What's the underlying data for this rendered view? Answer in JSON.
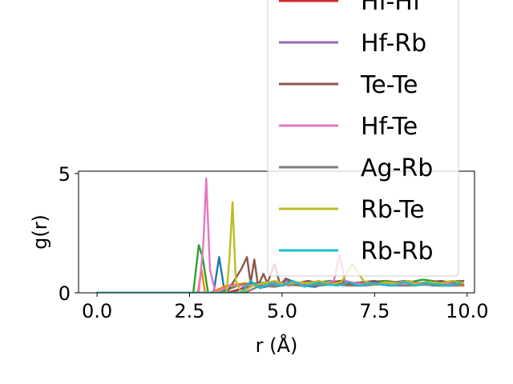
{
  "chart_data": {
    "type": "line",
    "title": "",
    "xlabel": "r (Å)",
    "ylabel": "g(r)",
    "xlim": [
      -0.5,
      10.2
    ],
    "ylim": [
      0,
      5.1
    ],
    "xticks": [
      {
        "value": 0.0,
        "label": "0.0"
      },
      {
        "value": 2.5,
        "label": "2.5"
      },
      {
        "value": 5.0,
        "label": "5.0"
      },
      {
        "value": 7.5,
        "label": "7.5"
      },
      {
        "value": 10.0,
        "label": "10.0"
      }
    ],
    "yticks": [
      {
        "value": 0,
        "label": "0"
      },
      {
        "value": 5,
        "label": "5"
      }
    ],
    "grid": false,
    "legend_position": "upper-right",
    "series": [
      {
        "name": "",
        "color": "#1f77b4",
        "x": [
          0,
          2.6,
          2.95,
          3.15,
          3.3,
          3.45,
          3.8,
          4.2,
          4.4,
          4.7,
          5.1,
          5.5,
          5.9,
          6.3,
          6.7,
          7.1,
          7.5,
          7.9,
          8.3,
          8.7,
          9.1,
          9.5,
          9.9
        ],
        "y": [
          0,
          0,
          0,
          0,
          1.5,
          0,
          0.1,
          0.4,
          0.2,
          0.3,
          0.35,
          0.3,
          0.25,
          0.45,
          0.35,
          0.3,
          0.4,
          0.3,
          0.35,
          0.4,
          0.3,
          0.35,
          0.3
        ]
      },
      {
        "name": "",
        "color": "#ff7f0e",
        "x": [
          0,
          2.6,
          2.72,
          2.82,
          2.92,
          3.05,
          3.5,
          4.0,
          4.5,
          5.0,
          5.5,
          6.0,
          6.5,
          7.0,
          7.5,
          8.0,
          8.5,
          9.0,
          9.5,
          9.9
        ],
        "y": [
          0,
          0,
          0,
          1.0,
          0,
          0,
          0.3,
          0.4,
          0.3,
          0.35,
          0.3,
          0.4,
          0.35,
          0.3,
          0.4,
          0.35,
          0.3,
          0.35,
          0.3,
          0.3
        ]
      },
      {
        "name": "",
        "color": "#2ca02c",
        "x": [
          0,
          2.6,
          2.75,
          2.85,
          3.0,
          3.3,
          3.8,
          4.3,
          4.8,
          5.3,
          5.8,
          6.3,
          6.8,
          7.3,
          7.8,
          8.3,
          8.8,
          9.3,
          9.8
        ],
        "y": [
          0,
          0,
          2.0,
          1.5,
          0,
          0,
          0.3,
          0.4,
          0.45,
          0.35,
          0.4,
          0.5,
          0.4,
          0.45,
          0.5,
          0.4,
          0.55,
          0.45,
          0.5
        ]
      },
      {
        "name": "Hf-Hf",
        "color": "#d62728",
        "x": [
          0,
          3.5,
          4.2,
          4.8,
          5.4,
          6.0,
          6.6,
          7.2,
          7.8,
          8.4,
          9.0,
          9.6,
          9.9
        ],
        "y": [
          0,
          0,
          0.3,
          0.4,
          0.35,
          0.45,
          0.4,
          0.35,
          0.45,
          0.4,
          0.35,
          0.4,
          0.35
        ]
      },
      {
        "name": "Hf-Rb",
        "color": "#9467bd",
        "x": [
          0,
          3.9,
          4.3,
          4.7,
          5.1,
          5.5,
          5.9,
          6.3,
          6.7,
          7.1,
          7.5,
          7.9,
          8.3,
          8.7,
          9.1,
          9.5,
          9.9
        ],
        "y": [
          0,
          0,
          0.4,
          0.3,
          0.5,
          0.35,
          0.45,
          0.4,
          0.5,
          0.35,
          0.45,
          0.4,
          0.5,
          0.35,
          0.45,
          0.4,
          0.5
        ]
      },
      {
        "name": "Te-Te",
        "color": "#8c564b",
        "x": [
          0,
          3.5,
          3.7,
          3.9,
          4.05,
          4.15,
          4.25,
          4.35,
          4.5,
          4.6,
          4.8,
          4.95,
          5.1,
          5.4,
          5.7,
          6.0,
          6.3,
          6.6,
          6.9,
          7.2,
          7.5,
          7.8,
          8.1,
          8.4,
          8.7,
          9.0,
          9.3,
          9.6,
          9.9
        ],
        "y": [
          0,
          0,
          0.5,
          1.0,
          1.5,
          0.4,
          1.4,
          0.3,
          0.8,
          0.4,
          1.2,
          0.3,
          0.6,
          0.4,
          0.5,
          0.4,
          0.45,
          0.5,
          0.4,
          0.45,
          0.5,
          0.4,
          0.45,
          0.5,
          0.4,
          0.45,
          0.5,
          0.4,
          0.5
        ]
      },
      {
        "name": "Hf-Te",
        "color": "#e377c2",
        "x": [
          0,
          2.75,
          2.87,
          2.95,
          3.05,
          3.2,
          3.6,
          4.0,
          4.4,
          4.8,
          5.2,
          5.6,
          6.0,
          6.4,
          6.55,
          6.7,
          7.0,
          7.4,
          7.8,
          8.2,
          8.6,
          9.0,
          9.4,
          9.8
        ],
        "y": [
          0,
          0,
          2.0,
          4.8,
          1.0,
          0,
          0.3,
          0.3,
          0.35,
          0.4,
          0.3,
          0.4,
          0.35,
          0.5,
          1.6,
          0.5,
          0.4,
          0.35,
          0.4,
          0.35,
          0.4,
          0.35,
          0.4,
          0.35
        ]
      },
      {
        "name": "Ag-Rb",
        "color": "#7f7f7f",
        "x": [
          0,
          4.0,
          4.4,
          4.8,
          5.2,
          5.6,
          6.0,
          6.4,
          6.8,
          7.2,
          7.6,
          8.0,
          8.4,
          8.8,
          9.2,
          9.6,
          9.9
        ],
        "y": [
          0,
          0,
          0.3,
          0.25,
          0.35,
          0.3,
          0.3,
          0.35,
          0.3,
          0.3,
          0.35,
          0.3,
          0.3,
          0.35,
          0.3,
          0.3,
          0.35
        ]
      },
      {
        "name": "Rb-Te",
        "color": "#bcbd22",
        "x": [
          0,
          3.5,
          3.58,
          3.66,
          3.75,
          3.9,
          4.2,
          4.5,
          4.8,
          5.1,
          5.4,
          5.7,
          6.0,
          6.3,
          6.6,
          6.9,
          7.2,
          7.5,
          7.8,
          8.1,
          8.4,
          8.7,
          9.0,
          9.3,
          9.6,
          9.9
        ],
        "y": [
          0,
          0,
          1.5,
          3.8,
          0.5,
          0,
          0.3,
          0.4,
          0.5,
          0.35,
          0.45,
          0.4,
          0.5,
          0.35,
          0.45,
          1.2,
          0.5,
          0.35,
          0.45,
          0.4,
          0.5,
          0.35,
          0.45,
          0.4,
          0.5,
          0.4
        ]
      },
      {
        "name": "Rb-Rb",
        "color": "#17becf",
        "x": [
          0,
          3.9,
          4.15,
          4.4,
          4.7,
          5.0,
          5.3,
          5.6,
          5.9,
          6.2,
          6.5,
          6.8,
          7.1,
          7.4,
          7.7,
          8.0,
          8.3,
          8.6,
          8.9,
          9.2,
          9.5,
          9.8
        ],
        "y": [
          0,
          0,
          0.5,
          0.2,
          0.4,
          0.3,
          0.5,
          0.25,
          0.4,
          0.35,
          0.3,
          0.45,
          0.3,
          0.4,
          0.35,
          0.3,
          0.45,
          0.3,
          0.4,
          0.35,
          0.3,
          0.4
        ]
      }
    ]
  }
}
